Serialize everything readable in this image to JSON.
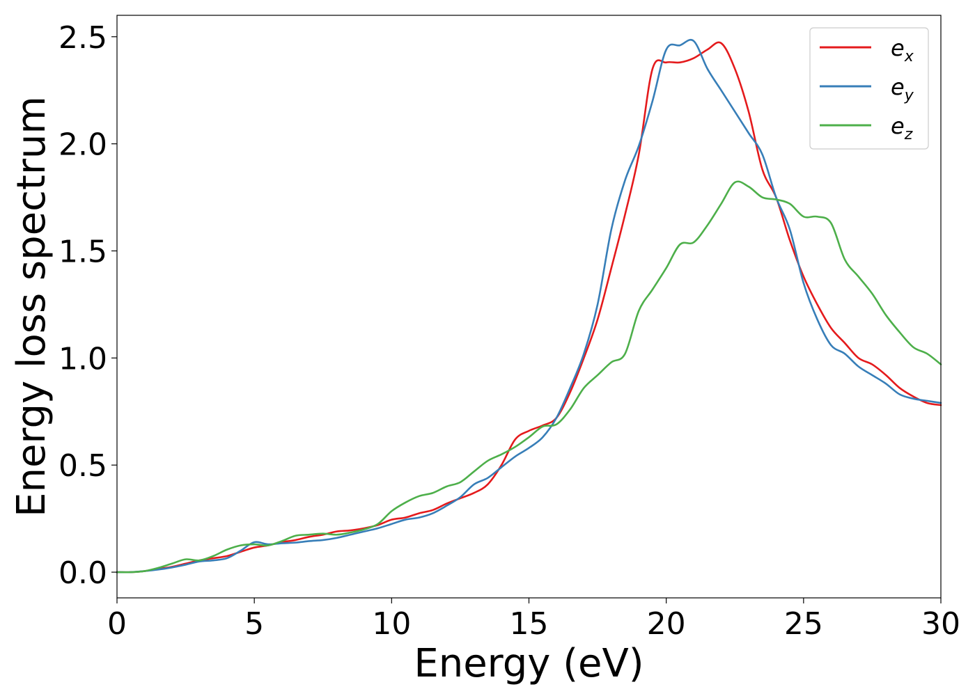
{
  "chart_data": {
    "type": "line",
    "title": "",
    "xlabel": "Energy (eV)",
    "ylabel": "Energy loss spectrum",
    "xlim": [
      0,
      30
    ],
    "ylim": [
      -0.12,
      2.6
    ],
    "xticks": [
      0,
      5,
      10,
      15,
      20,
      25,
      30
    ],
    "xtick_labels": [
      "0",
      "5",
      "10",
      "15",
      "20",
      "25",
      "30"
    ],
    "yticks": [
      0.0,
      0.5,
      1.0,
      1.5,
      2.0,
      2.5
    ],
    "ytick_labels": [
      "0.0",
      "0.5",
      "1.0",
      "1.5",
      "2.0",
      "2.5"
    ],
    "grid": false,
    "legend_position": "top-right",
    "x": [
      0,
      0.5,
      1,
      1.5,
      2,
      2.5,
      3,
      3.5,
      4,
      4.5,
      5,
      5.5,
      6,
      6.5,
      7,
      7.5,
      8,
      8.5,
      9,
      9.5,
      10,
      10.5,
      11,
      11.5,
      12,
      12.5,
      13,
      13.5,
      14,
      14.5,
      15,
      15.5,
      16,
      16.5,
      17,
      17.5,
      18,
      18.5,
      19,
      19.5,
      20,
      20.5,
      21,
      21.5,
      22,
      22.5,
      23,
      23.5,
      24,
      24.5,
      25,
      25.5,
      26,
      26.5,
      27,
      27.5,
      28,
      28.5,
      29,
      29.5,
      30
    ],
    "series": [
      {
        "name": "e",
        "subscript": "x",
        "color": "#e41a1c",
        "values": [
          0.0,
          0.0,
          0.005,
          0.015,
          0.025,
          0.04,
          0.055,
          0.065,
          0.075,
          0.095,
          0.115,
          0.125,
          0.14,
          0.15,
          0.165,
          0.175,
          0.19,
          0.195,
          0.205,
          0.22,
          0.245,
          0.255,
          0.275,
          0.29,
          0.32,
          0.345,
          0.37,
          0.41,
          0.5,
          0.62,
          0.66,
          0.685,
          0.72,
          0.84,
          1.0,
          1.18,
          1.42,
          1.67,
          1.95,
          2.35,
          2.38,
          2.38,
          2.4,
          2.44,
          2.47,
          2.35,
          2.15,
          1.88,
          1.75,
          1.55,
          1.38,
          1.25,
          1.14,
          1.07,
          1.0,
          0.97,
          0.92,
          0.86,
          0.82,
          0.79,
          0.78
        ]
      },
      {
        "name": "e",
        "subscript": "y",
        "color": "#377eb8",
        "values": [
          0.0,
          0.0,
          0.005,
          0.012,
          0.022,
          0.035,
          0.05,
          0.055,
          0.065,
          0.1,
          0.14,
          0.13,
          0.135,
          0.138,
          0.145,
          0.15,
          0.16,
          0.175,
          0.19,
          0.205,
          0.225,
          0.245,
          0.255,
          0.275,
          0.31,
          0.35,
          0.41,
          0.44,
          0.49,
          0.54,
          0.58,
          0.63,
          0.72,
          0.86,
          1.02,
          1.25,
          1.6,
          1.83,
          1.99,
          2.2,
          2.44,
          2.46,
          2.48,
          2.35,
          2.25,
          2.15,
          2.05,
          1.95,
          1.75,
          1.6,
          1.35,
          1.18,
          1.06,
          1.02,
          0.96,
          0.92,
          0.88,
          0.83,
          0.81,
          0.8,
          0.79
        ]
      },
      {
        "name": "e",
        "subscript": "z",
        "color": "#4daf4a",
        "values": [
          0.0,
          0.0,
          0.005,
          0.02,
          0.04,
          0.06,
          0.055,
          0.075,
          0.105,
          0.125,
          0.13,
          0.125,
          0.145,
          0.17,
          0.175,
          0.18,
          0.175,
          0.185,
          0.2,
          0.225,
          0.285,
          0.325,
          0.355,
          0.37,
          0.4,
          0.42,
          0.47,
          0.52,
          0.55,
          0.585,
          0.63,
          0.68,
          0.69,
          0.76,
          0.86,
          0.92,
          0.98,
          1.02,
          1.22,
          1.32,
          1.42,
          1.53,
          1.54,
          1.62,
          1.72,
          1.82,
          1.8,
          1.75,
          1.74,
          1.72,
          1.66,
          1.66,
          1.63,
          1.46,
          1.38,
          1.3,
          1.2,
          1.12,
          1.05,
          1.02,
          0.97
        ]
      }
    ]
  }
}
